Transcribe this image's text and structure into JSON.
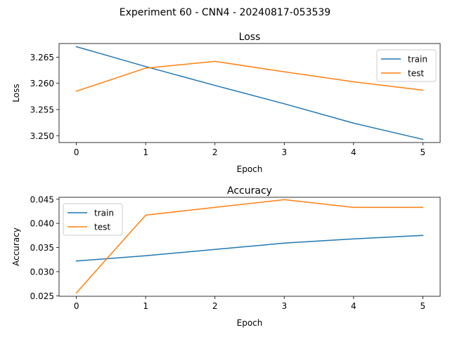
{
  "figure": {
    "suptitle": "Experiment 60 - CNN4 - 20240817-053539"
  },
  "chart_data": [
    {
      "type": "line",
      "title": "Loss",
      "xlabel": "Epoch",
      "ylabel": "Loss",
      "x": [
        0,
        1,
        2,
        3,
        4,
        5
      ],
      "xticks": [
        "0",
        "1",
        "2",
        "3",
        "4",
        "5"
      ],
      "xlim": [
        -0.25,
        5.25
      ],
      "ylim": [
        3.2487,
        3.2676
      ],
      "yticks": [
        "3.250",
        "3.255",
        "3.260",
        "3.265"
      ],
      "ytick_values": [
        3.25,
        3.255,
        3.26,
        3.265
      ],
      "legend": "top-right",
      "grid": false,
      "series": [
        {
          "name": "train",
          "color": "#1f77b4",
          "values": [
            3.267,
            3.2632,
            3.2596,
            3.2561,
            3.2524,
            3.2493
          ]
        },
        {
          "name": "test",
          "color": "#ff7f0e",
          "values": [
            3.2585,
            3.2629,
            3.2642,
            3.2622,
            3.2603,
            3.2587
          ]
        }
      ]
    },
    {
      "type": "line",
      "title": "Accuracy",
      "xlabel": "Epoch",
      "ylabel": "Accuracy",
      "x": [
        0,
        1,
        2,
        3,
        4,
        5
      ],
      "xticks": [
        "0",
        "1",
        "2",
        "3",
        "4",
        "5"
      ],
      "xlim": [
        -0.25,
        5.25
      ],
      "ylim": [
        0.0249,
        0.0454
      ],
      "yticks": [
        "0.025",
        "0.030",
        "0.035",
        "0.040",
        "0.045"
      ],
      "ytick_values": [
        0.025,
        0.03,
        0.035,
        0.04,
        0.045
      ],
      "legend": "top-left",
      "grid": false,
      "series": [
        {
          "name": "train",
          "color": "#1f77b4",
          "values": [
            0.0322,
            0.0333,
            0.0346,
            0.0359,
            0.0368,
            0.0375
          ]
        },
        {
          "name": "test",
          "color": "#ff7f0e",
          "values": [
            0.0256,
            0.0417,
            0.0433,
            0.0449,
            0.0433,
            0.0433
          ]
        }
      ]
    }
  ]
}
